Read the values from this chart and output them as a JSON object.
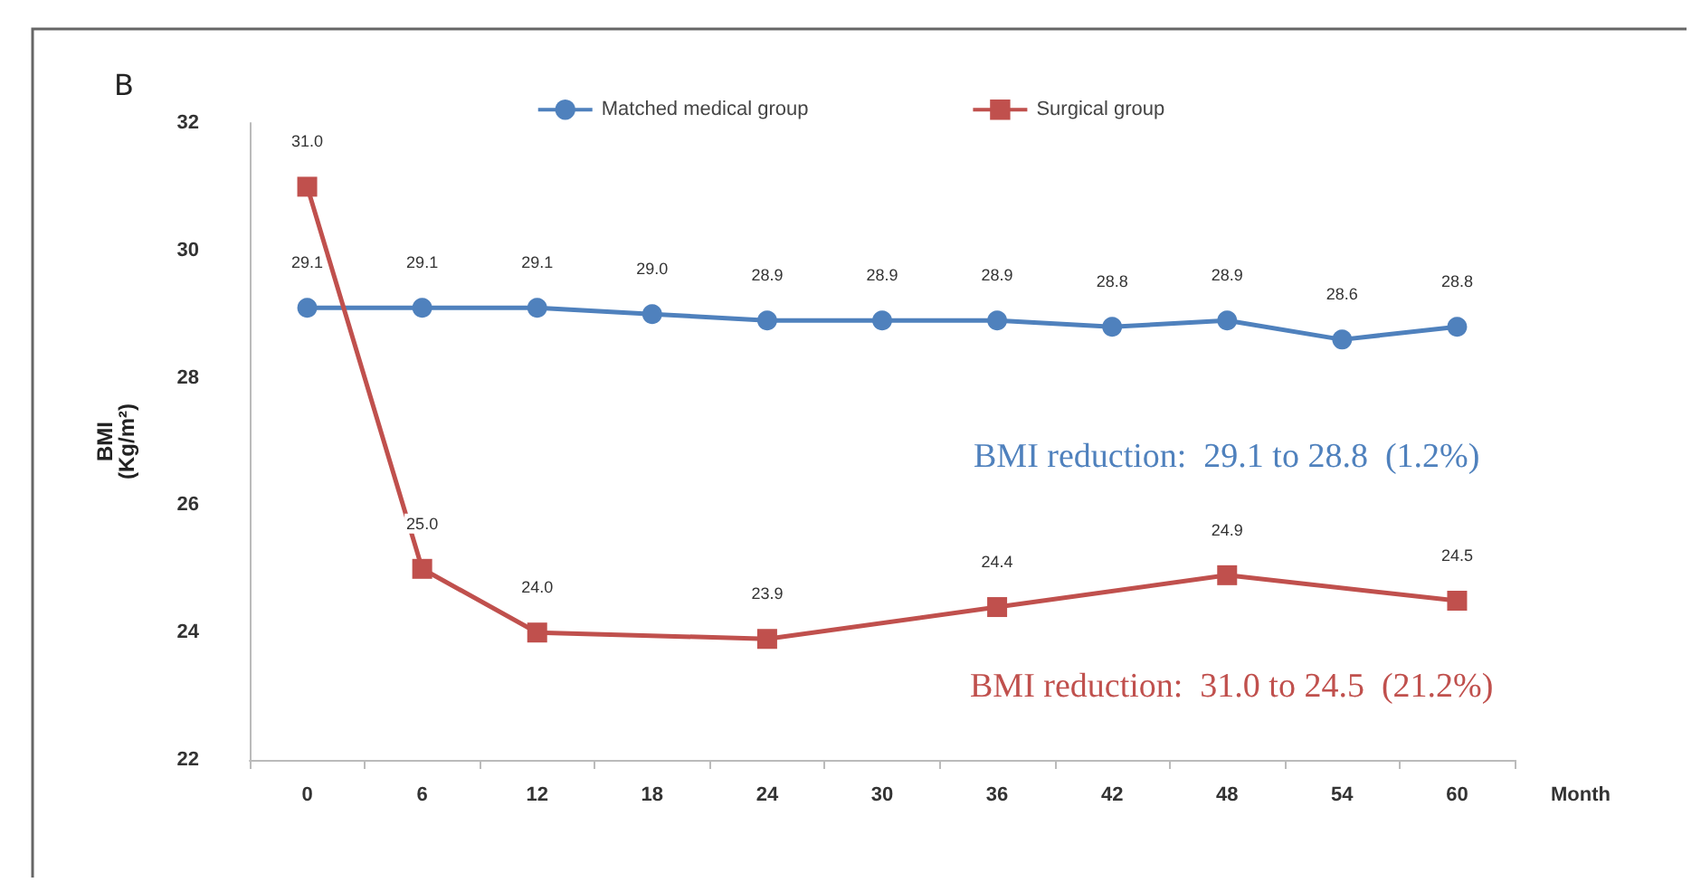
{
  "chart_data": {
    "type": "line",
    "title": "B",
    "xlabel": "Month",
    "ylabel": "BMI\n(Kg/m²)",
    "categories": [
      "0",
      "6",
      "12",
      "18",
      "24",
      "30",
      "36",
      "42",
      "48",
      "54",
      "60"
    ],
    "series": [
      {
        "name": "Matched medical group",
        "color": "#4f81bd",
        "marker": "circle",
        "values": [
          29.1,
          29.1,
          29.1,
          29.0,
          28.9,
          28.9,
          28.9,
          28.8,
          28.9,
          28.6,
          28.8
        ],
        "value_labels": [
          "29.1",
          "29.1",
          "29.1",
          "29.0",
          "28.9",
          "28.9",
          "28.9",
          "28.8",
          "28.9",
          "28.6",
          "28.8"
        ]
      },
      {
        "name": "Surgical group",
        "color": "#c0504d",
        "marker": "square",
        "values": [
          31.0,
          25.0,
          24.0,
          null,
          23.9,
          null,
          24.4,
          null,
          24.9,
          null,
          24.5
        ],
        "value_labels": [
          "31.0",
          "25.0",
          "24.0",
          null,
          "23.9",
          null,
          "24.4",
          null,
          "24.9",
          null,
          "24.5"
        ]
      }
    ],
    "ylim": [
      22,
      32
    ],
    "yticks": [
      22,
      24,
      26,
      28,
      30,
      32
    ],
    "grid": false,
    "legend": "top",
    "annotations": [
      "BMI reduction:  29.1 to 28.8  (1.2%)",
      "BMI reduction:  31.0 to 24.5  (21.2%)"
    ]
  }
}
